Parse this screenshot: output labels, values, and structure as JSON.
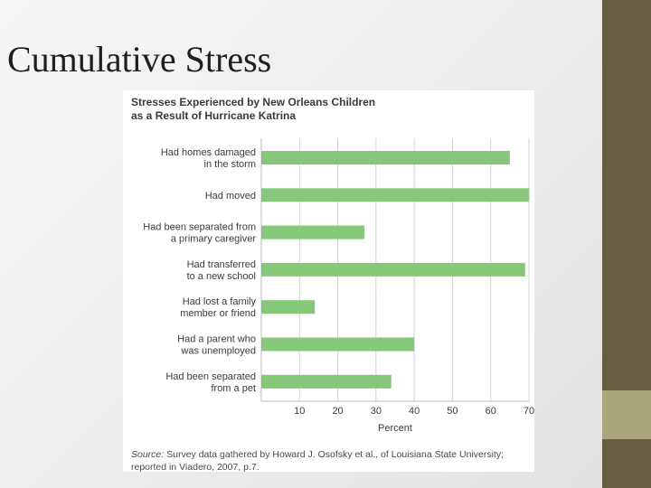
{
  "slide": {
    "title": "Cumulative Stress",
    "colors": {
      "background": "#ececec",
      "bar": "#665d43",
      "accent": "#a9a67c"
    }
  },
  "chart_data": {
    "type": "bar",
    "orientation": "horizontal",
    "title_lines": [
      "Stresses Experienced by New Orleans Children",
      "as a Result of Hurricane Katrina"
    ],
    "categories": [
      [
        "Had homes damaged",
        "in the storm"
      ],
      [
        "Had moved"
      ],
      [
        "Had been separated from",
        "a primary caregiver"
      ],
      [
        "Had transferred",
        "to a new school"
      ],
      [
        "Had lost a family",
        "member or friend"
      ],
      [
        "Had a parent who",
        "was unemployed"
      ],
      [
        "Had been separated",
        "from a pet"
      ]
    ],
    "values": [
      65,
      70,
      27,
      69,
      14,
      40,
      34
    ],
    "xlabel": "Percent",
    "xlim": [
      0,
      70
    ],
    "xticks": [
      10,
      20,
      30,
      40,
      50,
      60,
      70
    ],
    "grid": "vertical",
    "bar_color": "#86c77a",
    "source_prefix": "Source:",
    "source_lines": [
      " Survey data gathered by Howard J. Osofsky et al., of Louisiana State University;",
      "reported in Viadero, 2007, p.7."
    ]
  }
}
